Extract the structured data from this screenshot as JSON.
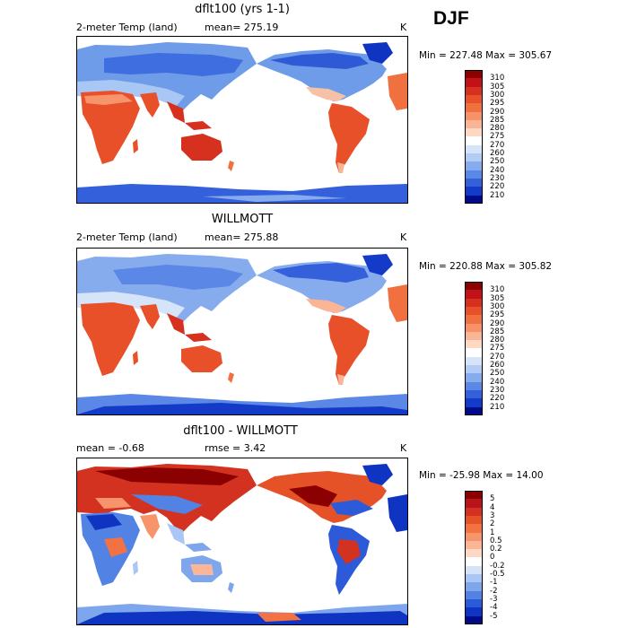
{
  "season": "DJF",
  "panels": [
    {
      "title": "dflt100 (yrs 1-1)",
      "subtitle_left": "2-meter Temp (land)",
      "mean_text": "mean= 275.19",
      "rmse_text": "",
      "units": "K",
      "min_max": "Min = 227.48 Max = 305.67",
      "colorbar": {
        "labels": [
          "310",
          "305",
          "300",
          "295",
          "290",
          "285",
          "280",
          "275",
          "270",
          "260",
          "250",
          "240",
          "230",
          "220",
          "210"
        ],
        "colors": [
          "#8b0000",
          "#c1121a",
          "#d6301e",
          "#e8502a",
          "#f07040",
          "#f69268",
          "#fab496",
          "#fdd8c2",
          "#ffffff",
          "#d6e4fa",
          "#b2ccf5",
          "#86acee",
          "#5b88e6",
          "#3560dc",
          "#143ac8",
          "#000b8c"
        ]
      }
    },
    {
      "title": "WILLMOTT",
      "subtitle_left": "2-meter Temp (land)",
      "mean_text": "mean= 275.88",
      "rmse_text": "",
      "units": "K",
      "min_max": "Min = 220.88 Max = 305.82",
      "colorbar": {
        "labels": [
          "310",
          "305",
          "300",
          "295",
          "290",
          "285",
          "280",
          "275",
          "270",
          "260",
          "250",
          "240",
          "230",
          "220",
          "210"
        ],
        "colors": [
          "#8b0000",
          "#c1121a",
          "#d6301e",
          "#e8502a",
          "#f07040",
          "#f69268",
          "#fab496",
          "#fdd8c2",
          "#ffffff",
          "#d6e4fa",
          "#b2ccf5",
          "#86acee",
          "#5b88e6",
          "#3560dc",
          "#143ac8",
          "#000b8c"
        ]
      }
    },
    {
      "title": "dflt100 - WILLMOTT",
      "subtitle_left": "",
      "mean_text": "mean =   -0.68",
      "rmse_text": "rmse =    3.42",
      "units": "K",
      "min_max": "Min = -25.98 Max =   14.00",
      "colorbar": {
        "labels": [
          "5",
          "4",
          "3",
          "2",
          "1",
          "0.5",
          "0.2",
          "0",
          "-0.2",
          "-0.5",
          "-1",
          "-2",
          "-3",
          "-4",
          "-5"
        ],
        "colors": [
          "#8b0000",
          "#b8141c",
          "#d2321f",
          "#e65228",
          "#f27244",
          "#f7946c",
          "#fbb698",
          "#fdd8c4",
          "#ffffff",
          "#d4e2fa",
          "#aac6f4",
          "#7ea6ec",
          "#5282e4",
          "#2c5ad8",
          "#1034c2",
          "#000b8c"
        ]
      }
    }
  ]
}
